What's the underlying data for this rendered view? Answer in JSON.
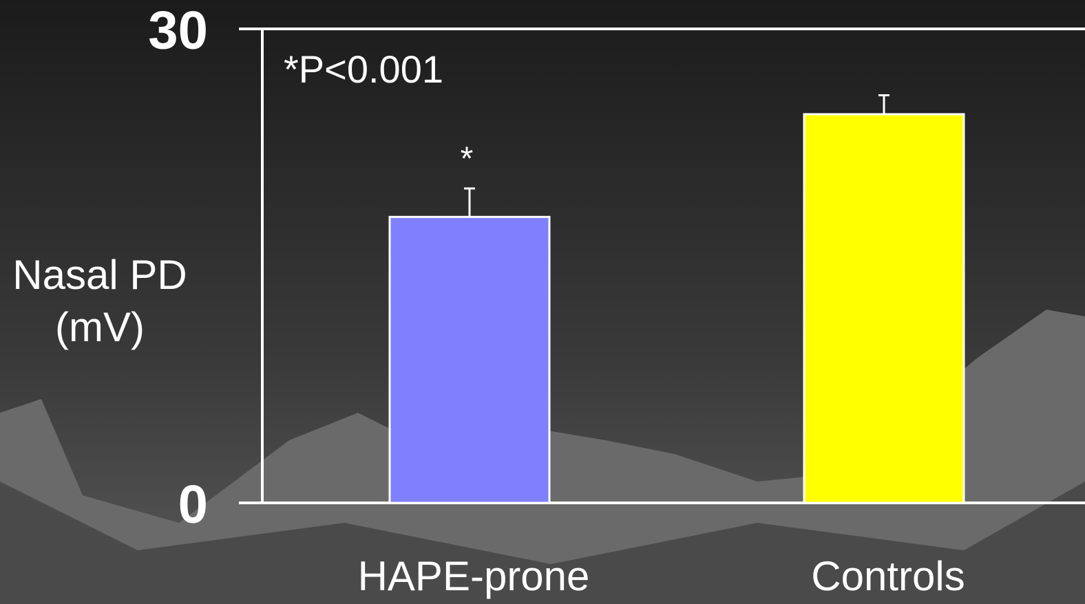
{
  "chart_data": {
    "type": "bar",
    "ylabel": "Nasal PD (mV)",
    "annotation": "*P<0.001",
    "significance_mark": "*",
    "categories": [
      "HAPE-prone",
      "Controls"
    ],
    "values": [
      18.1,
      24.6
    ],
    "errors": [
      1.8,
      1.2
    ],
    "colors": [
      "#8080ff",
      "#ffff00"
    ],
    "ylim": [
      0,
      30
    ],
    "yticks": [
      0,
      30
    ]
  }
}
